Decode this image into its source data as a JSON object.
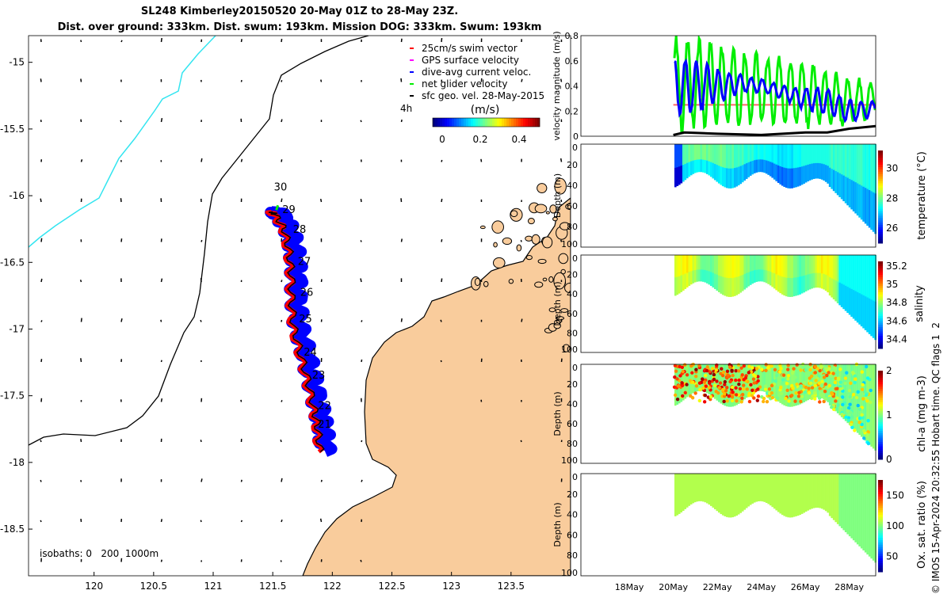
{
  "title": {
    "line1": "SL248 Kimberley20150520 20-May 01Z to 28-May 23Z.",
    "line2": "Dist. over ground: 333km. Dist. swum: 193km. Mission DOG: 333km. Swum: 193km"
  },
  "legend": {
    "items": [
      {
        "label": "25cm/s swim vector",
        "color": "#ff0000"
      },
      {
        "label": "GPS surface velocity",
        "color": "#ff00ff"
      },
      {
        "label": "dive-avg current veloc.",
        "color": "#0000ff"
      },
      {
        "label": "net glider velocity",
        "color": "#00ee00"
      },
      {
        "label": "sfc geo. vel. 28-May-2015",
        "color": "#000000"
      }
    ],
    "time_label": "4h",
    "colorbar_label": "(m/s)",
    "colorbar_ticks": [
      "0",
      "0.2",
      "0.4"
    ]
  },
  "isobaths_label": "isobaths: 0   200  1000m",
  "copyright": "© IMOS 15-Apr-2024 20:32:55 Hobart time. QC flags 1  2",
  "chart_data": [
    {
      "type": "map",
      "x_ticks": [
        "120",
        "120.5",
        "121",
        "121.5",
        "122",
        "122.5",
        "123",
        "123.5"
      ],
      "y_ticks": [
        "-15",
        "-15.5",
        "-16",
        "-16.5",
        "-17",
        "-17.5",
        "-18",
        "-18.5"
      ],
      "xlim": [
        119.45,
        124.0
      ],
      "ylim": [
        -18.85,
        -14.8
      ],
      "day_labels": [
        {
          "day": "21",
          "lon": 121.88,
          "lat": -17.74
        },
        {
          "day": "22",
          "lon": 121.88,
          "lat": -17.6
        },
        {
          "day": "23",
          "lon": 121.83,
          "lat": -17.37
        },
        {
          "day": "24",
          "lon": 121.76,
          "lat": -17.2
        },
        {
          "day": "25",
          "lon": 121.72,
          "lat": -16.95
        },
        {
          "day": "26",
          "lon": 121.73,
          "lat": -16.75
        },
        {
          "day": "27",
          "lon": 121.71,
          "lat": -16.52
        },
        {
          "day": "28",
          "lon": 121.67,
          "lat": -16.28
        },
        {
          "day": "29",
          "lon": 121.58,
          "lat": -16.13
        },
        {
          "day": "30",
          "lon": 121.51,
          "lat": -15.96
        }
      ],
      "track": [
        [
          121.9,
          -17.92
        ],
        [
          121.88,
          -17.75
        ],
        [
          121.85,
          -17.6
        ],
        [
          121.8,
          -17.4
        ],
        [
          121.74,
          -17.2
        ],
        [
          121.68,
          -17.0
        ],
        [
          121.66,
          -16.8
        ],
        [
          121.66,
          -16.6
        ],
        [
          121.64,
          -16.42
        ],
        [
          121.6,
          -16.25
        ],
        [
          121.52,
          -16.14
        ],
        [
          121.49,
          -16.12
        ]
      ]
    },
    {
      "type": "line",
      "ylabel": "velocity magnitude (m/s)",
      "ylim": [
        0,
        0.8
      ],
      "y_ticks": [
        "0",
        "0.2",
        "0.4",
        "0.6",
        "0.8"
      ],
      "xlim_days": [
        15.8,
        29.2
      ],
      "series": [
        {
          "name": "net glider velocity",
          "color": "#00ee00",
          "day": [
            20,
            21,
            22,
            23,
            24,
            25,
            26,
            27,
            28,
            29.2
          ],
          "mean": [
            0.4,
            0.42,
            0.4,
            0.38,
            0.38,
            0.36,
            0.34,
            0.3,
            0.28,
            0.3
          ],
          "amplitude": [
            0.4,
            0.4,
            0.38,
            0.34,
            0.3,
            0.3,
            0.3,
            0.25,
            0.2,
            0.15
          ]
        },
        {
          "name": "dive-avg current veloc.",
          "color": "#0000ff",
          "day": [
            20,
            21,
            22,
            23,
            24,
            25,
            26,
            27,
            28,
            29.2
          ],
          "mean": [
            0.4,
            0.4,
            0.4,
            0.42,
            0.4,
            0.35,
            0.3,
            0.28,
            0.2,
            0.22
          ],
          "amplitude": [
            0.28,
            0.25,
            0.15,
            0.08,
            0.06,
            0.06,
            0.1,
            0.12,
            0.1,
            0.06
          ]
        },
        {
          "name": "25cm/s swim vector",
          "color": "#ff6666",
          "day": [
            20,
            29.2
          ],
          "value": [
            0.25,
            0.25
          ]
        },
        {
          "name": "sfc geo. vel.",
          "color": "#000000",
          "day": [
            20,
            20.5,
            22,
            24,
            26,
            27,
            28,
            29.2
          ],
          "value": [
            0.01,
            0.03,
            0.02,
            0.01,
            0.03,
            0.03,
            0.06,
            0.08
          ]
        }
      ]
    },
    {
      "type": "heatmap",
      "variable": "temperature (°C)",
      "ylabel": "Depth (m)",
      "depth_ticks": [
        "0",
        "20",
        "40",
        "60",
        "80",
        "100"
      ],
      "cbar_ticks": [
        "26",
        "28",
        "30"
      ],
      "clim": [
        25,
        31.2
      ],
      "typical": 27.8
    },
    {
      "type": "heatmap",
      "variable": "salinity",
      "ylabel": "Depth (m)",
      "depth_ticks": [
        "0",
        "20",
        "40",
        "60",
        "80",
        "100"
      ],
      "cbar_ticks": [
        "34.4",
        "34.6",
        "34.8",
        "35",
        "35.2"
      ],
      "clim": [
        34.3,
        35.25
      ],
      "typical": 34.75
    },
    {
      "type": "heatmap",
      "variable": "chl-a (mg m-3)",
      "ylabel": "Depth (m)",
      "depth_ticks": [
        "0",
        "20",
        "40",
        "60",
        "80",
        "100"
      ],
      "cbar_ticks": [
        "0",
        "1",
        "2"
      ],
      "clim": [
        0,
        2
      ],
      "typical": 1.0
    },
    {
      "type": "heatmap",
      "variable": "Ox. sat. ratio (%)",
      "ylabel": "Depth (m)",
      "depth_ticks": [
        "0",
        "20",
        "40",
        "60",
        "80",
        "100"
      ],
      "cbar_ticks": [
        "50",
        "100",
        "150"
      ],
      "clim": [
        25,
        175
      ],
      "typical": 100
    },
    {
      "type": "axis",
      "date_ticks": [
        "18May",
        "20May",
        "22May",
        "24May",
        "26May",
        "28May"
      ]
    }
  ]
}
